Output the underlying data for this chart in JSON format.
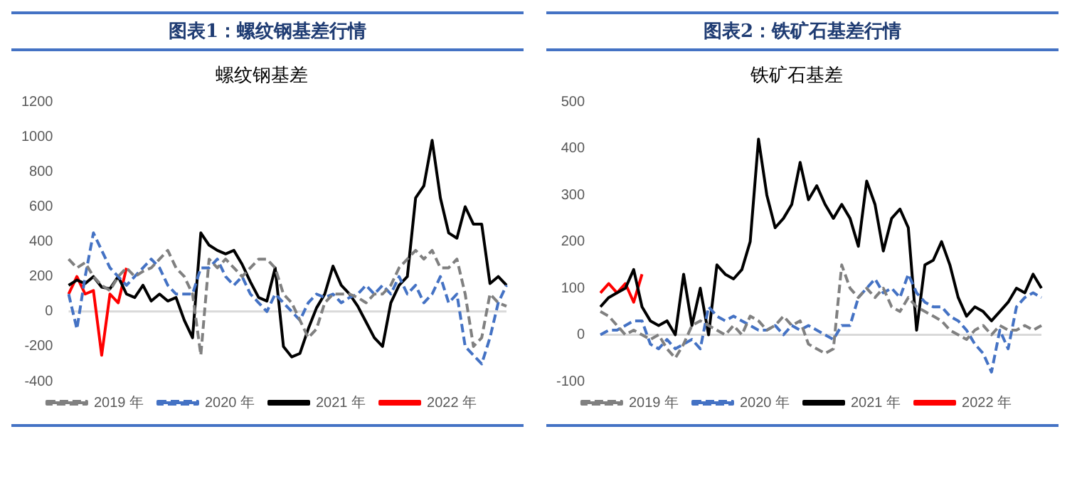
{
  "chart_data": [
    {
      "type": "line",
      "title": "图表1：螺纹钢基差行情",
      "subtitle": "螺纹钢基差",
      "categories": [
        null,
        null,
        null,
        null,
        null,
        null,
        null,
        null,
        null,
        null,
        null,
        null,
        null,
        null,
        null,
        null,
        null,
        null,
        null,
        null,
        null,
        null,
        null,
        null,
        null,
        null,
        null,
        null,
        null,
        null,
        null,
        null,
        null,
        null,
        null,
        null,
        null,
        null,
        null,
        null,
        null,
        null,
        null,
        null,
        null,
        null,
        null,
        null,
        null,
        null,
        null,
        null,
        null,
        null
      ],
      "series": [
        {
          "name": "2019 年",
          "color": "#808080",
          "line_style": "dashed",
          "values": [
            300,
            250,
            280,
            200,
            150,
            120,
            200,
            250,
            200,
            230,
            250,
            300,
            350,
            250,
            200,
            100,
            -250,
            300,
            250,
            300,
            250,
            200,
            250,
            300,
            300,
            250,
            100,
            50,
            -50,
            -150,
            -100,
            50,
            100,
            100,
            100,
            80,
            50,
            100,
            100,
            150,
            250,
            300,
            350,
            300,
            350,
            250,
            250,
            300,
            100,
            -200,
            -150,
            100,
            50,
            30
          ]
        },
        {
          "name": "2020 年",
          "color": "#4472c4",
          "line_style": "dashed",
          "values": [
            100,
            -100,
            200,
            450,
            350,
            250,
            200,
            150,
            200,
            250,
            300,
            250,
            150,
            100,
            100,
            100,
            250,
            250,
            300,
            200,
            150,
            200,
            100,
            50,
            0,
            100,
            50,
            0,
            -50,
            50,
            100,
            80,
            100,
            50,
            80,
            100,
            150,
            100,
            150,
            100,
            200,
            100,
            150,
            50,
            100,
            200,
            50,
            100,
            -200,
            -250,
            -300,
            -150,
            50,
            150
          ]
        },
        {
          "name": "2021 年",
          "color": "#000000",
          "line_style": "solid",
          "values": [
            150,
            180,
            160,
            200,
            140,
            130,
            200,
            100,
            80,
            150,
            60,
            100,
            60,
            80,
            -50,
            -150,
            450,
            380,
            350,
            330,
            350,
            270,
            170,
            80,
            60,
            250,
            -200,
            -260,
            -240,
            -100,
            20,
            100,
            260,
            150,
            100,
            30,
            -60,
            -150,
            -200,
            50,
            150,
            200,
            650,
            720,
            980,
            650,
            450,
            420,
            600,
            500,
            500,
            160,
            200,
            150
          ]
        },
        {
          "name": "2022 年",
          "color": "#ff0000",
          "line_style": "solid",
          "values": [
            100,
            200,
            100,
            120,
            -250,
            100,
            50,
            250,
            null,
            null,
            null,
            null,
            null,
            null,
            null,
            null,
            null,
            null,
            null,
            null,
            null,
            null,
            null,
            null,
            null,
            null,
            null,
            null,
            null,
            null,
            null,
            null,
            null,
            null,
            null,
            null,
            null,
            null,
            null,
            null,
            null,
            null,
            null,
            null,
            null,
            null,
            null,
            null,
            null,
            null,
            null,
            null,
            null,
            null
          ]
        }
      ],
      "ylim": [
        -400,
        1200
      ],
      "yticks": [
        -400,
        -200,
        0,
        200,
        400,
        600,
        800,
        1000,
        1200
      ],
      "tick_labels": "y",
      "grid": false,
      "legend": "bottom",
      "marker": "none",
      "ref_lines": [
        {
          "axis": "y",
          "value": 0,
          "color": "#d9d9d9"
        }
      ]
    },
    {
      "type": "line",
      "title": "图表2：铁矿石基差行情",
      "subtitle": "铁矿石基差",
      "categories": [
        null,
        null,
        null,
        null,
        null,
        null,
        null,
        null,
        null,
        null,
        null,
        null,
        null,
        null,
        null,
        null,
        null,
        null,
        null,
        null,
        null,
        null,
        null,
        null,
        null,
        null,
        null,
        null,
        null,
        null,
        null,
        null,
        null,
        null,
        null,
        null,
        null,
        null,
        null,
        null,
        null,
        null,
        null,
        null,
        null,
        null,
        null,
        null,
        null,
        null,
        null,
        null,
        null,
        null
      ],
      "series": [
        {
          "name": "2019 年",
          "color": "#808080",
          "line_style": "dashed",
          "values": [
            50,
            40,
            20,
            0,
            10,
            0,
            -10,
            0,
            -30,
            -50,
            -20,
            20,
            30,
            20,
            10,
            0,
            20,
            0,
            40,
            30,
            10,
            20,
            40,
            20,
            30,
            -20,
            -30,
            -40,
            -30,
            150,
            100,
            80,
            100,
            80,
            100,
            60,
            50,
            80,
            60,
            50,
            40,
            30,
            10,
            0,
            -10,
            10,
            20,
            0,
            20,
            10,
            10,
            20,
            10,
            20
          ]
        },
        {
          "name": "2020 年",
          "color": "#4472c4",
          "line_style": "dashed",
          "values": [
            0,
            10,
            10,
            20,
            30,
            30,
            -20,
            -30,
            -10,
            -30,
            -20,
            -10,
            -30,
            60,
            40,
            30,
            40,
            30,
            20,
            10,
            10,
            20,
            0,
            20,
            10,
            20,
            10,
            0,
            -10,
            20,
            20,
            80,
            100,
            120,
            90,
            100,
            80,
            130,
            90,
            70,
            60,
            60,
            40,
            30,
            10,
            -20,
            -40,
            -80,
            10,
            -30,
            60,
            80,
            90,
            80
          ]
        },
        {
          "name": "2021 年",
          "color": "#000000",
          "line_style": "solid",
          "values": [
            60,
            80,
            90,
            100,
            140,
            60,
            30,
            20,
            30,
            0,
            130,
            20,
            100,
            0,
            150,
            130,
            120,
            140,
            200,
            420,
            300,
            230,
            250,
            280,
            370,
            290,
            320,
            280,
            250,
            280,
            250,
            190,
            330,
            280,
            180,
            250,
            270,
            230,
            10,
            150,
            160,
            200,
            150,
            80,
            40,
            60,
            50,
            30,
            50,
            70,
            100,
            90,
            130,
            100
          ]
        },
        {
          "name": "2022 年",
          "color": "#ff0000",
          "line_style": "solid",
          "values": [
            90,
            110,
            90,
            110,
            70,
            130,
            null,
            null,
            null,
            null,
            null,
            null,
            null,
            null,
            null,
            null,
            null,
            null,
            null,
            null,
            null,
            null,
            null,
            null,
            null,
            null,
            null,
            null,
            null,
            null,
            null,
            null,
            null,
            null,
            null,
            null,
            null,
            null,
            null,
            null,
            null,
            null,
            null,
            null,
            null,
            null,
            null,
            null,
            null,
            null,
            null,
            null,
            null,
            null
          ]
        }
      ],
      "ylim": [
        -100,
        500
      ],
      "yticks": [
        -100,
        0,
        100,
        200,
        300,
        400,
        500
      ],
      "tick_labels": "y",
      "grid": false,
      "legend": "bottom",
      "marker": "none",
      "ref_lines": [
        {
          "axis": "y",
          "value": 0,
          "color": "#d9d9d9"
        }
      ]
    }
  ]
}
